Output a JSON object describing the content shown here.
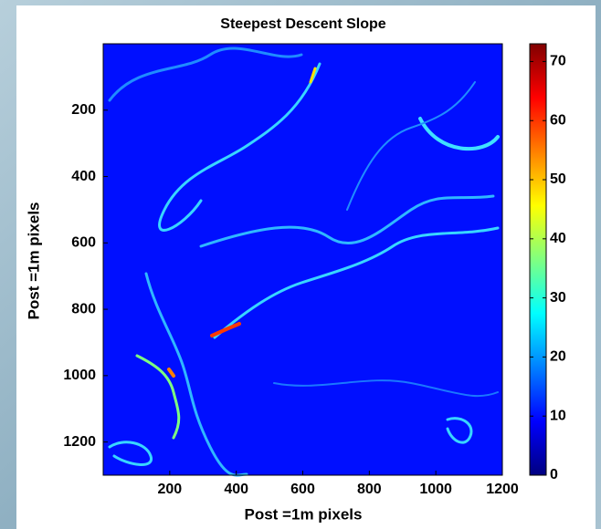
{
  "chart_data": {
    "type": "heatmap",
    "title": "Steepest Descent Slope",
    "xlabel": "Post =1m pixels",
    "ylabel": "Post =1m pixels",
    "xlim": [
      0,
      1200
    ],
    "xticks": [
      200,
      400,
      600,
      800,
      1000,
      1200
    ],
    "ylim": [
      0,
      1300
    ],
    "yticks": [
      200,
      400,
      600,
      800,
      1000,
      1200
    ],
    "y_reversed": true,
    "colormap": "jet",
    "clim": [
      0,
      73
    ],
    "cticks": [
      0,
      10,
      20,
      30,
      40,
      50,
      60,
      70
    ]
  }
}
